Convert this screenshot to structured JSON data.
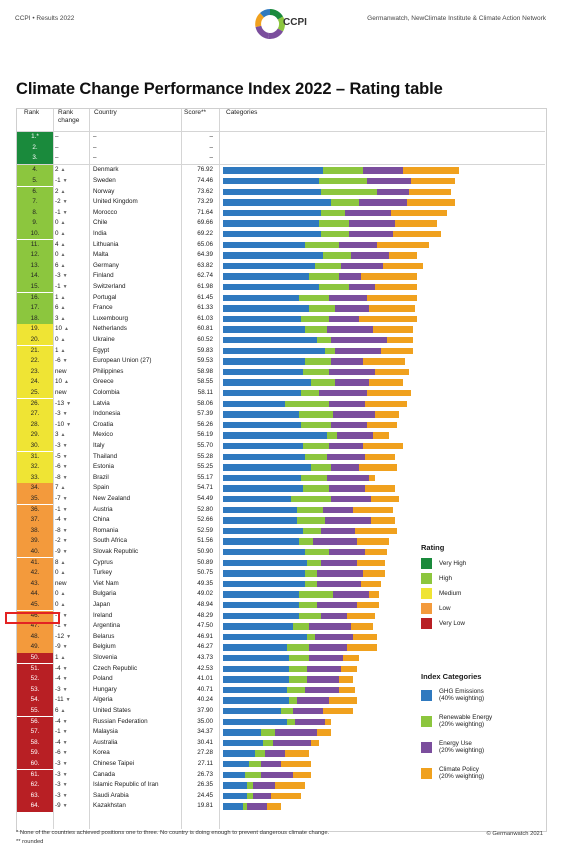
{
  "header": {
    "left": "CCPI • Results 2022",
    "right": "Germanwatch, NewClimate Institute & Climate Action Network",
    "logo_text": "CCPI"
  },
  "title": "Climate Change Performance Index 2022 – Rating table",
  "columns": {
    "rank": "Rank",
    "rank_change_1": "Rank",
    "rank_change_2": "change",
    "country": "Country",
    "score": "Score**",
    "categories": "Categories"
  },
  "colors": {
    "very_high": "#1a8a3c",
    "high": "#8cc63e",
    "medium": "#efe434",
    "low": "#f39a3c",
    "very_low": "#b81f24",
    "ghg": "#2f79bf",
    "renewable": "#8cc63e",
    "energy_use": "#7b4e9d",
    "policy": "#f0a11e",
    "up_arrow": "#666666",
    "down_arrow": "#666666"
  },
  "rows": [
    {
      "rank": "1.*",
      "change": "–",
      "country": "–",
      "score": "–",
      "rating": "very_high",
      "bars": [
        0,
        0,
        0,
        0
      ]
    },
    {
      "rank": "2.",
      "change": "–",
      "country": "–",
      "score": "–",
      "rating": "very_high",
      "bars": [
        0,
        0,
        0,
        0
      ]
    },
    {
      "rank": "3.",
      "change": "–",
      "country": "–",
      "score": "–",
      "rating": "very_high",
      "bars": [
        0,
        0,
        0,
        0
      ]
    },
    {
      "rank": "4.",
      "change": "2",
      "dir": "up",
      "country": "Denmark",
      "score": "76.92",
      "rating": "high",
      "bars": [
        100,
        40,
        40,
        56
      ]
    },
    {
      "rank": "5.",
      "change": "-1",
      "dir": "down",
      "country": "Sweden",
      "score": "74.46",
      "rating": "high",
      "bars": [
        96,
        48,
        44,
        44
      ]
    },
    {
      "rank": "6.",
      "change": "2",
      "dir": "up",
      "country": "Norway",
      "score": "73.62",
      "rating": "high",
      "bars": [
        98,
        56,
        32,
        42
      ]
    },
    {
      "rank": "7.",
      "change": "-2",
      "dir": "down",
      "country": "United Kingdom",
      "score": "73.29",
      "rating": "high",
      "bars": [
        108,
        28,
        48,
        48
      ]
    },
    {
      "rank": "8.",
      "change": "-1",
      "dir": "down",
      "country": "Morocco",
      "score": "71.64",
      "rating": "high",
      "bars": [
        98,
        24,
        46,
        56
      ]
    },
    {
      "rank": "9.",
      "change": "0",
      "dir": "up",
      "country": "Chile",
      "score": "69.66",
      "rating": "high",
      "bars": [
        96,
        30,
        46,
        42
      ]
    },
    {
      "rank": "10.",
      "change": "0",
      "dir": "up",
      "country": "India",
      "score": "69.22",
      "rating": "high",
      "bars": [
        98,
        28,
        44,
        48
      ]
    },
    {
      "rank": "11.",
      "change": "4",
      "dir": "up",
      "country": "Lithuania",
      "score": "65.06",
      "rating": "high",
      "bars": [
        82,
        34,
        38,
        52
      ]
    },
    {
      "rank": "12.",
      "change": "0",
      "dir": "up",
      "country": "Malta",
      "score": "64.39",
      "rating": "high",
      "bars": [
        100,
        28,
        38,
        28
      ]
    },
    {
      "rank": "13.",
      "change": "6",
      "dir": "up",
      "country": "Germany",
      "score": "63.82",
      "rating": "high",
      "bars": [
        92,
        26,
        42,
        40
      ]
    },
    {
      "rank": "14.",
      "change": "-3",
      "dir": "down",
      "country": "Finland",
      "score": "62.74",
      "rating": "high",
      "bars": [
        86,
        30,
        22,
        56
      ]
    },
    {
      "rank": "15.",
      "change": "-1",
      "dir": "down",
      "country": "Switzerland",
      "score": "61.98",
      "rating": "high",
      "bars": [
        96,
        30,
        26,
        42
      ]
    },
    {
      "rank": "16.",
      "change": "1",
      "dir": "up",
      "country": "Portugal",
      "score": "61.45",
      "rating": "high",
      "bars": [
        76,
        30,
        38,
        50
      ]
    },
    {
      "rank": "17.",
      "change": "6",
      "dir": "up",
      "country": "France",
      "score": "61.33",
      "rating": "high",
      "bars": [
        86,
        26,
        34,
        46
      ]
    },
    {
      "rank": "18.",
      "change": "3",
      "dir": "up",
      "country": "Luxembourg",
      "score": "61.03",
      "rating": "high",
      "bars": [
        78,
        28,
        30,
        58
      ]
    },
    {
      "rank": "19.",
      "change": "10",
      "dir": "up",
      "country": "Netherlands",
      "score": "60.81",
      "rating": "medium",
      "bars": [
        82,
        22,
        46,
        40
      ]
    },
    {
      "rank": "20.",
      "change": "0",
      "dir": "up",
      "country": "Ukraine",
      "score": "60.52",
      "rating": "medium",
      "bars": [
        94,
        14,
        56,
        26
      ]
    },
    {
      "rank": "21.",
      "change": "1",
      "dir": "up",
      "country": "Egypt",
      "score": "59.83",
      "rating": "medium",
      "bars": [
        102,
        10,
        46,
        32
      ]
    },
    {
      "rank": "22.",
      "change": "-6",
      "dir": "down",
      "country": "European Union (27)",
      "score": "59.53",
      "rating": "medium",
      "bars": [
        82,
        26,
        32,
        42
      ]
    },
    {
      "rank": "23.",
      "change": "new",
      "dir": "",
      "country": "Philippines",
      "score": "58.98",
      "rating": "medium",
      "bars": [
        80,
        26,
        46,
        34
      ]
    },
    {
      "rank": "24.",
      "change": "10",
      "dir": "up",
      "country": "Greece",
      "score": "58.55",
      "rating": "medium",
      "bars": [
        88,
        24,
        34,
        34
      ]
    },
    {
      "rank": "25.",
      "change": "new",
      "dir": "",
      "country": "Colombia",
      "score": "58.11",
      "rating": "medium",
      "bars": [
        78,
        18,
        48,
        44
      ]
    },
    {
      "rank": "26.",
      "change": "-13",
      "dir": "down",
      "country": "Latvia",
      "score": "58.06",
      "rating": "medium",
      "bars": [
        62,
        44,
        36,
        42
      ]
    },
    {
      "rank": "27.",
      "change": "-3",
      "dir": "down",
      "country": "Indonesia",
      "score": "57.39",
      "rating": "medium",
      "bars": [
        76,
        34,
        42,
        24
      ]
    },
    {
      "rank": "28.",
      "change": "-10",
      "dir": "down",
      "country": "Croatia",
      "score": "56.26",
      "rating": "medium",
      "bars": [
        78,
        30,
        36,
        30
      ]
    },
    {
      "rank": "29.",
      "change": "3",
      "dir": "up",
      "country": "Mexico",
      "score": "56.19",
      "rating": "medium",
      "bars": [
        104,
        10,
        36,
        16
      ]
    },
    {
      "rank": "30.",
      "change": "-3",
      "dir": "down",
      "country": "Italy",
      "score": "55.70",
      "rating": "medium",
      "bars": [
        80,
        26,
        34,
        40
      ]
    },
    {
      "rank": "31.",
      "change": "-5",
      "dir": "down",
      "country": "Thailand",
      "score": "55.28",
      "rating": "medium",
      "bars": [
        82,
        22,
        38,
        30
      ]
    },
    {
      "rank": "32.",
      "change": "-6",
      "dir": "down",
      "country": "Estonia",
      "score": "55.25",
      "rating": "medium",
      "bars": [
        88,
        20,
        28,
        38
      ]
    },
    {
      "rank": "33.",
      "change": "-8",
      "dir": "down",
      "country": "Brazil",
      "score": "55.17",
      "rating": "medium",
      "bars": [
        78,
        26,
        42,
        6
      ]
    },
    {
      "rank": "34.",
      "change": "7",
      "dir": "up",
      "country": "Spain",
      "score": "54.71",
      "rating": "low",
      "bars": [
        80,
        26,
        36,
        30
      ]
    },
    {
      "rank": "35.",
      "change": "-7",
      "dir": "down",
      "country": "New Zealand",
      "score": "54.49",
      "rating": "low",
      "bars": [
        68,
        40,
        40,
        28
      ]
    },
    {
      "rank": "36.",
      "change": "-1",
      "dir": "down",
      "country": "Austria",
      "score": "52.80",
      "rating": "low",
      "bars": [
        74,
        26,
        30,
        40
      ]
    },
    {
      "rank": "37.",
      "change": "-4",
      "dir": "down",
      "country": "China",
      "score": "52.66",
      "rating": "low",
      "bars": [
        74,
        28,
        46,
        24
      ]
    },
    {
      "rank": "38.",
      "change": "-8",
      "dir": "down",
      "country": "Romania",
      "score": "52.59",
      "rating": "low",
      "bars": [
        80,
        18,
        34,
        42
      ]
    },
    {
      "rank": "39.",
      "change": "-2",
      "dir": "down",
      "country": "South Africa",
      "score": "51.56",
      "rating": "low",
      "bars": [
        76,
        14,
        44,
        32
      ]
    },
    {
      "rank": "40.",
      "change": "-9",
      "dir": "down",
      "country": "Slovak Republic",
      "score": "50.90",
      "rating": "low",
      "bars": [
        82,
        24,
        36,
        22
      ]
    },
    {
      "rank": "41.",
      "change": "8",
      "dir": "up",
      "country": "Cyprus",
      "score": "50.89",
      "rating": "low",
      "bars": [
        84,
        14,
        36,
        28
      ]
    },
    {
      "rank": "42.",
      "change": "0",
      "dir": "up",
      "country": "Turkey",
      "score": "50.75",
      "rating": "low",
      "bars": [
        82,
        12,
        46,
        22
      ]
    },
    {
      "rank": "43.",
      "change": "new",
      "dir": "",
      "country": "Viet Nam",
      "score": "49.35",
      "rating": "low",
      "bars": [
        82,
        12,
        44,
        20
      ]
    },
    {
      "rank": "44.",
      "change": "0",
      "dir": "up",
      "country": "Bulgaria",
      "score": "49.02",
      "rating": "low",
      "bars": [
        76,
        34,
        36,
        10
      ]
    },
    {
      "rank": "45.",
      "change": "0",
      "dir": "up",
      "country": "Japan",
      "score": "48.94",
      "rating": "low",
      "bars": [
        76,
        18,
        40,
        22
      ]
    },
    {
      "rank": "46.",
      "change": "-7",
      "dir": "down",
      "country": "Ireland",
      "score": "48.29",
      "rating": "low",
      "bars": [
        76,
        22,
        26,
        28
      ]
    },
    {
      "rank": "47.",
      "change": "-1",
      "dir": "down",
      "country": "Argentina",
      "score": "47.50",
      "rating": "low",
      "bars": [
        70,
        16,
        42,
        22
      ]
    },
    {
      "rank": "48.",
      "change": "-12",
      "dir": "down",
      "country": "Belarus",
      "score": "46.91",
      "rating": "low",
      "bars": [
        84,
        8,
        38,
        24
      ]
    },
    {
      "rank": "49.",
      "change": "-9",
      "dir": "down",
      "country": "Belgium",
      "score": "46.27",
      "rating": "low",
      "bars": [
        64,
        22,
        38,
        30
      ]
    },
    {
      "rank": "50.",
      "change": "1",
      "dir": "up",
      "country": "Slovenia",
      "score": "43.73",
      "rating": "very_low",
      "bars": [
        66,
        20,
        34,
        16
      ]
    },
    {
      "rank": "51.",
      "change": "-4",
      "dir": "down",
      "country": "Czech Republic",
      "score": "42.53",
      "rating": "very_low",
      "bars": [
        66,
        18,
        34,
        16
      ]
    },
    {
      "rank": "52.",
      "change": "-4",
      "dir": "down",
      "country": "Poland",
      "score": "41.01",
      "rating": "very_low",
      "bars": [
        66,
        18,
        32,
        14
      ]
    },
    {
      "rank": "53.",
      "change": "-3",
      "dir": "down",
      "country": "Hungary",
      "score": "40.71",
      "rating": "very_low",
      "bars": [
        64,
        18,
        34,
        16
      ]
    },
    {
      "rank": "54.",
      "change": "-11",
      "dir": "down",
      "country": "Algeria",
      "score": "40.24",
      "rating": "very_low",
      "bars": [
        66,
        8,
        32,
        28
      ]
    },
    {
      "rank": "55.",
      "change": "6",
      "dir": "up",
      "country": "United States",
      "score": "37.90",
      "rating": "very_low",
      "bars": [
        58,
        12,
        30,
        30
      ]
    },
    {
      "rank": "56.",
      "change": "-4",
      "dir": "down",
      "country": "Russian Federation",
      "score": "35.00",
      "rating": "very_low",
      "bars": [
        64,
        8,
        30,
        6
      ]
    },
    {
      "rank": "57.",
      "change": "-1",
      "dir": "down",
      "country": "Malaysia",
      "score": "34.37",
      "rating": "very_low",
      "bars": [
        38,
        14,
        42,
        14
      ]
    },
    {
      "rank": "58.",
      "change": "-4",
      "dir": "down",
      "country": "Australia",
      "score": "30.41",
      "rating": "very_low",
      "bars": [
        40,
        10,
        38,
        8
      ]
    },
    {
      "rank": "59.",
      "change": "-6",
      "dir": "down",
      "country": "Korea",
      "score": "27.28",
      "rating": "very_low",
      "bars": [
        32,
        10,
        20,
        24
      ]
    },
    {
      "rank": "60.",
      "change": "-3",
      "dir": "down",
      "country": "Chinese Taipei",
      "score": "27.11",
      "rating": "very_low",
      "bars": [
        26,
        12,
        20,
        30
      ]
    },
    {
      "rank": "61.",
      "change": "-3",
      "dir": "down",
      "country": "Canada",
      "score": "26.73",
      "rating": "very_low",
      "bars": [
        22,
        16,
        32,
        18
      ]
    },
    {
      "rank": "62.",
      "change": "-3",
      "dir": "down",
      "country": "Islamic Republic of Iran",
      "score": "26.35",
      "rating": "very_low",
      "bars": [
        24,
        6,
        22,
        30
      ]
    },
    {
      "rank": "63.",
      "change": "-3",
      "dir": "down",
      "country": "Saudi Arabia",
      "score": "24.45",
      "rating": "very_low",
      "bars": [
        24,
        6,
        18,
        30
      ]
    },
    {
      "rank": "64.",
      "change": "-9",
      "dir": "down",
      "country": "Kazakhstan",
      "score": "19.81",
      "rating": "very_low",
      "bars": [
        20,
        4,
        20,
        14
      ]
    }
  ],
  "legend_rating": {
    "title": "Rating",
    "items": [
      {
        "label": "Very High",
        "color": "#1a8a3c"
      },
      {
        "label": "High",
        "color": "#8cc63e"
      },
      {
        "label": "Medium",
        "color": "#efe434"
      },
      {
        "label": "Low",
        "color": "#f39a3c"
      },
      {
        "label": "Very Low",
        "color": "#b81f24"
      }
    ]
  },
  "legend_categories": {
    "title": "Index Categories",
    "items": [
      {
        "line1": "GHG Emissions",
        "line2": "(40% weighting)",
        "color": "#2f79bf"
      },
      {
        "line1": "Renewable Energy",
        "line2": "(20% weighting)",
        "color": "#8cc63e"
      },
      {
        "line1": "Energy Use",
        "line2": "(20% weighting)",
        "color": "#7b4e9d"
      },
      {
        "line1": "Climate Policy",
        "line2": "(20% weighting)",
        "color": "#f0a11e"
      }
    ]
  },
  "footnotes": {
    "note1": "* None of the countries achieved positions one to three. No country is doing enough to prevent dangerous climate change.",
    "note2": "** rounded",
    "copyright": "© Germanwatch 2021"
  }
}
